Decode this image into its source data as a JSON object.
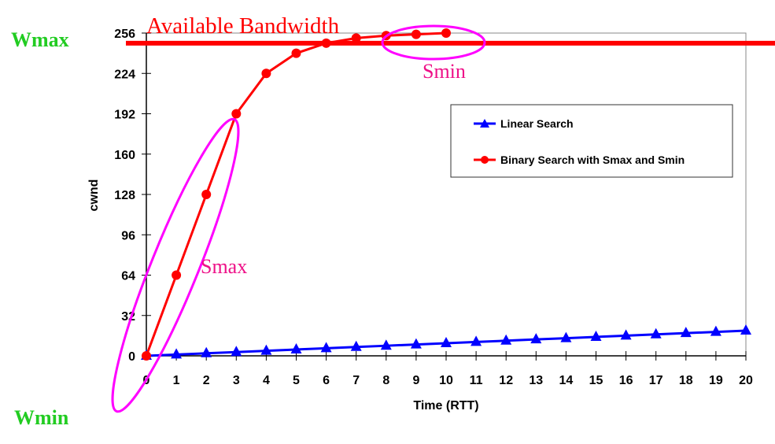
{
  "chart_data": {
    "type": "line",
    "title": "",
    "xlabel": "Time (RTT)",
    "ylabel": "cwnd",
    "xlim": [
      0,
      20
    ],
    "ylim": [
      0,
      256
    ],
    "x_ticks": [
      0,
      1,
      2,
      3,
      4,
      5,
      6,
      7,
      8,
      9,
      10,
      11,
      12,
      13,
      14,
      15,
      16,
      17,
      18,
      19,
      20
    ],
    "y_ticks": [
      0,
      32,
      64,
      96,
      128,
      160,
      192,
      224,
      256
    ],
    "grid": false,
    "legend_position": "right",
    "series": [
      {
        "name": "Linear Search",
        "color": "#0000ff",
        "marker": "triangle",
        "x": [
          0,
          1,
          2,
          3,
          4,
          5,
          6,
          7,
          8,
          9,
          10,
          11,
          12,
          13,
          14,
          15,
          16,
          17,
          18,
          19,
          20
        ],
        "y": [
          0,
          1,
          2,
          3,
          4,
          5,
          6,
          7,
          8,
          9,
          10,
          11,
          12,
          13,
          14,
          15,
          16,
          17,
          18,
          19,
          20
        ]
      },
      {
        "name": "Binary Search with Smax and Smin",
        "color": "#ff0000",
        "marker": "circle",
        "x": [
          0,
          1,
          2,
          3,
          4,
          5,
          6,
          7,
          8,
          9,
          10
        ],
        "y": [
          0,
          64,
          128,
          192,
          224,
          240,
          248,
          252,
          254,
          255,
          256
        ]
      }
    ],
    "annotations": {
      "available_bandwidth": {
        "label": "Available Bandwidth",
        "value": 248,
        "color": "#ff0000"
      },
      "wmax": {
        "label": "Wmax",
        "color": "#22cc22"
      },
      "wmin": {
        "label": "Wmin",
        "color": "#22cc22"
      },
      "smax": {
        "label": "Smax",
        "color": "#ff00ff"
      },
      "smin": {
        "label": "Smin",
        "color": "#ff00ff"
      }
    }
  }
}
